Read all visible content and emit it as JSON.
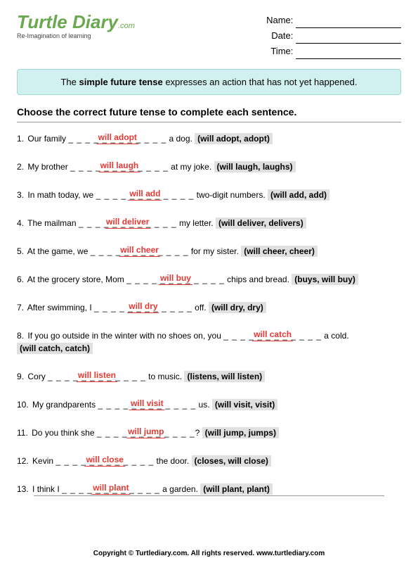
{
  "logo": {
    "main": "Turtle Diary",
    "suffix": ".com",
    "tagline": "Re-Imagination of learning"
  },
  "meta": {
    "name_label": "Name:",
    "date_label": "Date:",
    "time_label": "Time:"
  },
  "info_box": {
    "pre": "The ",
    "bold": "simple future tense",
    "post": " expresses an action that has not yet happened."
  },
  "instructions": "Choose the correct future tense to complete each sentence.",
  "dashes": "_ _ _ _ _ _ _ _ _ _ _ _",
  "questions": [
    {
      "num": "1.",
      "pre": "Our family ",
      "answer": "will adopt",
      "post": " a dog.",
      "options": "(will adopt, adopt)"
    },
    {
      "num": "2.",
      "pre": "My brother ",
      "answer": "will laugh",
      "post": " at my joke.",
      "options": "(will laugh, laughs)"
    },
    {
      "num": "3.",
      "pre": "In math today, we ",
      "answer": "will add",
      "post": " two-digit numbers.",
      "options": "(will add, add)"
    },
    {
      "num": "4.",
      "pre": "The mailman ",
      "answer": "will deliver",
      "post": " my letter.",
      "options": "(will deliver, delivers)"
    },
    {
      "num": "5.",
      "pre": "At the game, we ",
      "answer": "will cheer",
      "post": " for my sister.",
      "options": "(will cheer, cheer)"
    },
    {
      "num": "6.",
      "pre": "At the grocery store, Mom ",
      "answer": "will buy",
      "post": " chips and bread.",
      "options": "(buys, will buy)"
    },
    {
      "num": "7.",
      "pre": "After swimming, I ",
      "answer": "will dry",
      "post": " off.",
      "options": "(will dry, dry)"
    },
    {
      "num": "8.",
      "pre": "If you go outside in the winter with no shoes on, you ",
      "answer": "will catch",
      "post": " a cold.",
      "options": "(will catch, catch)",
      "options_newline": true
    },
    {
      "num": "9.",
      "pre": "Cory ",
      "answer": "will listen",
      "post": " to music.",
      "options": "(listens, will listen)"
    },
    {
      "num": "10.",
      "pre": "My grandparents ",
      "answer": "will visit",
      "post": " us.",
      "options": "(will visit, visit)"
    },
    {
      "num": "11.",
      "pre": "Do you think she ",
      "answer": "will jump",
      "post": "?",
      "options": "(will jump, jumps)"
    },
    {
      "num": "12.",
      "pre": "Kevin ",
      "answer": "will close",
      "post": " the door.",
      "options": "(closes, will close)"
    },
    {
      "num": "13.",
      "pre": "I think I ",
      "answer": "will plant",
      "post": " a garden.",
      "options": "(will plant, plant)"
    }
  ],
  "footer": "Copyright © Turtlediary.com. All rights reserved.   www.turtlediary.com"
}
